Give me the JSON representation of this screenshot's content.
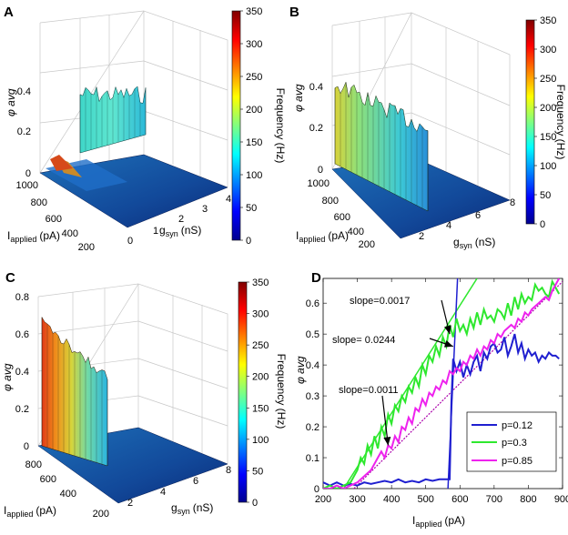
{
  "panels": {
    "A": {
      "letter": "A",
      "z_label": "φ avg",
      "z_ticks": [
        "0",
        "0.2",
        "0.4"
      ],
      "iapp_ticks": [
        "1000",
        "800",
        "600",
        "400",
        "200"
      ],
      "gsyn_ticks": [
        "0",
        "1",
        "2",
        "3",
        "4"
      ],
      "iapp_label": "I",
      "iapp_sub": "applied",
      "iapp_unit": "(pA)",
      "gsyn_label": "g",
      "gsyn_sub": "syn",
      "gsyn_unit": "(nS)",
      "colorbar_ticks": [
        "350",
        "300",
        "250",
        "200",
        "150",
        "100",
        "50",
        "0"
      ],
      "colorbar_title": "Frequency (Hz)"
    },
    "B": {
      "letter": "B",
      "z_label": "φ avg",
      "z_ticks": [
        "0",
        "0.2",
        "0.4"
      ],
      "iapp_ticks": [
        "1000",
        "800",
        "600",
        "400",
        "200"
      ],
      "gsyn_ticks": [
        "2",
        "4",
        "6",
        "8"
      ],
      "iapp_label": "I",
      "iapp_sub": "applied",
      "iapp_unit": "(pA)",
      "gsyn_label": "g",
      "gsyn_sub": "syn",
      "gsyn_unit": "(nS)",
      "colorbar_ticks": [
        "350",
        "300",
        "250",
        "200",
        "150",
        "100",
        "50",
        "0"
      ],
      "colorbar_title": "Frequency (Hz)"
    },
    "C": {
      "letter": "C",
      "z_label": "φ avg",
      "z_ticks": [
        "0",
        "0.2",
        "0.4",
        "0.6",
        "0.8"
      ],
      "iapp_ticks": [
        "800",
        "600",
        "400",
        "200"
      ],
      "gsyn_ticks": [
        "2",
        "4",
        "6",
        "8"
      ],
      "iapp_label": "I",
      "iapp_sub": "applied",
      "iapp_unit": "(pA)",
      "gsyn_label": "g",
      "gsyn_sub": "syn",
      "gsyn_unit": "(nS)",
      "colorbar_ticks": [
        "350",
        "300",
        "250",
        "200",
        "150",
        "100",
        "50",
        "0"
      ],
      "colorbar_title": "Frequency (Hz)"
    }
  },
  "colors": {
    "jet": [
      "#00008f",
      "#0000ff",
      "#0080ff",
      "#00ffff",
      "#80ff80",
      "#ffff00",
      "#ff8000",
      "#ff0000",
      "#800000"
    ],
    "p012": "#1f1fd0",
    "p03": "#2ee82e",
    "p085": "#ee22ee",
    "fit_p085": "#aa00aa"
  },
  "chart_data": {
    "type": "line",
    "letter": "D",
    "xlabel": "I",
    "xlabel_sub": "applied",
    "xlabel_unit": "(pA)",
    "ylabel": "φ avg",
    "xlim": [
      200,
      900
    ],
    "ylim": [
      0,
      0.68
    ],
    "x_ticks": [
      200,
      300,
      400,
      500,
      600,
      700,
      800,
      900
    ],
    "y_ticks": [
      0,
      0.1,
      0.2,
      0.3,
      0.4,
      0.5,
      0.6
    ],
    "series": [
      {
        "name": "p=0.12",
        "x": [
          200,
          220,
          240,
          260,
          280,
          300,
          320,
          340,
          360,
          380,
          400,
          420,
          440,
          460,
          480,
          500,
          520,
          540,
          560,
          570,
          575,
          580,
          590,
          600,
          610,
          620,
          630,
          640,
          650,
          660,
          670,
          680,
          690,
          700,
          710,
          720,
          730,
          740,
          750,
          760,
          770,
          780,
          790,
          800,
          810,
          820,
          830,
          840,
          850,
          860,
          870,
          880,
          890
        ],
        "values": [
          0.02,
          0.01,
          0.02,
          0.01,
          0.015,
          0.01,
          0.02,
          0.015,
          0.02,
          0.025,
          0.02,
          0.03,
          0.02,
          0.025,
          0.02,
          0.03,
          0.025,
          0.03,
          0.03,
          0.03,
          0.28,
          0.42,
          0.38,
          0.41,
          0.36,
          0.4,
          0.37,
          0.41,
          0.43,
          0.38,
          0.44,
          0.42,
          0.46,
          0.47,
          0.44,
          0.45,
          0.49,
          0.43,
          0.46,
          0.5,
          0.44,
          0.47,
          0.42,
          0.45,
          0.43,
          0.44,
          0.41,
          0.43,
          0.42,
          0.44,
          0.43,
          0.43,
          0.42
        ]
      },
      {
        "name": "p=0.3",
        "x": [
          200,
          220,
          240,
          260,
          280,
          300,
          310,
          320,
          330,
          340,
          350,
          360,
          370,
          380,
          390,
          400,
          410,
          420,
          430,
          440,
          450,
          460,
          470,
          480,
          490,
          500,
          510,
          520,
          530,
          540,
          550,
          560,
          570,
          580,
          590,
          600,
          610,
          620,
          630,
          640,
          650,
          660,
          670,
          680,
          690,
          700,
          710,
          720,
          730,
          740,
          750,
          760,
          770,
          780,
          790,
          800,
          810,
          820,
          830,
          840,
          850,
          860,
          870,
          880,
          890
        ],
        "values": [
          0.0,
          0.01,
          0.0,
          0.01,
          0.02,
          0.06,
          0.1,
          0.08,
          0.14,
          0.11,
          0.17,
          0.13,
          0.2,
          0.17,
          0.24,
          0.21,
          0.27,
          0.25,
          0.3,
          0.28,
          0.33,
          0.31,
          0.36,
          0.33,
          0.4,
          0.37,
          0.43,
          0.41,
          0.46,
          0.43,
          0.49,
          0.46,
          0.53,
          0.49,
          0.55,
          0.51,
          0.53,
          0.5,
          0.55,
          0.52,
          0.57,
          0.53,
          0.58,
          0.55,
          0.56,
          0.54,
          0.58,
          0.57,
          0.55,
          0.6,
          0.56,
          0.62,
          0.58,
          0.63,
          0.6,
          0.62,
          0.61,
          0.66,
          0.64,
          0.65,
          0.63,
          0.62,
          0.67,
          0.65,
          0.63
        ]
      },
      {
        "name": "p=0.85",
        "x": [
          200,
          220,
          240,
          260,
          280,
          300,
          320,
          340,
          350,
          360,
          370,
          380,
          390,
          400,
          410,
          420,
          430,
          440,
          450,
          460,
          470,
          480,
          490,
          500,
          510,
          520,
          530,
          540,
          550,
          560,
          570,
          580,
          590,
          600,
          610,
          620,
          630,
          640,
          650,
          660,
          670,
          680,
          690,
          700,
          710,
          720,
          730,
          740,
          750,
          760,
          770,
          780,
          790,
          800,
          810,
          820,
          830,
          840,
          850,
          860,
          870,
          880,
          890
        ],
        "values": [
          0.0,
          0.0,
          0.01,
          0.0,
          0.01,
          0.02,
          0.04,
          0.06,
          0.08,
          0.1,
          0.12,
          0.1,
          0.14,
          0.13,
          0.17,
          0.15,
          0.2,
          0.19,
          0.23,
          0.21,
          0.26,
          0.25,
          0.29,
          0.27,
          0.31,
          0.3,
          0.33,
          0.32,
          0.35,
          0.34,
          0.38,
          0.37,
          0.39,
          0.38,
          0.41,
          0.4,
          0.43,
          0.42,
          0.45,
          0.43,
          0.46,
          0.45,
          0.48,
          0.47,
          0.5,
          0.49,
          0.51,
          0.52,
          0.53,
          0.52,
          0.55,
          0.54,
          0.57,
          0.56,
          0.58,
          0.59,
          0.6,
          0.61,
          0.62,
          0.61,
          0.64,
          0.66,
          0.68
        ]
      }
    ],
    "fits": [
      {
        "name": "fit p=0.3",
        "slope": 0.0017,
        "x": [
          260,
          650
        ],
        "y": [
          0.0,
          0.68
        ]
      },
      {
        "name": "fit p=0.12",
        "slope": 0.0244,
        "x": [
          565,
          593
        ],
        "y": [
          0.0,
          0.68
        ]
      },
      {
        "name": "fit p=0.85",
        "slope": 0.0011,
        "x": [
          290,
          900
        ],
        "y": [
          0.0,
          0.67
        ]
      }
    ],
    "annotations": [
      {
        "text": "slope=0.0017",
        "target_x": 570,
        "target_y": 0.5
      },
      {
        "text": "slope= 0.0244",
        "target_x": 580,
        "target_y": 0.46
      },
      {
        "text": "slope=0.0011",
        "target_x": 390,
        "target_y": 0.14
      }
    ],
    "legend_position": "bottom-right"
  }
}
